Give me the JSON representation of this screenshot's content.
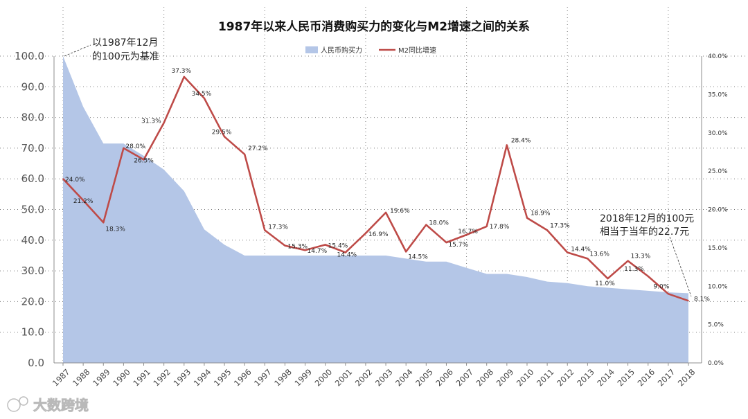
{
  "chart_data": {
    "type": "area+line",
    "title": "1987年以来人民币消费购买力的变化与M2增速之间的关系",
    "categories": [
      "1987",
      "1988",
      "1989",
      "1990",
      "1991",
      "1992",
      "1993",
      "1994",
      "1995",
      "1996",
      "1997",
      "1998",
      "1999",
      "2000",
      "2001",
      "2002",
      "2003",
      "2004",
      "2005",
      "2006",
      "2007",
      "2008",
      "2009",
      "2010",
      "2011",
      "2012",
      "2013",
      "2014",
      "2015",
      "2016",
      "2017",
      "2018"
    ],
    "y_left": {
      "ylim": [
        0,
        100
      ],
      "ticks": [
        "0.0",
        "10.0",
        "20.0",
        "30.0",
        "40.0",
        "50.0",
        "60.0",
        "70.0",
        "80.0",
        "90.0",
        "100.0"
      ]
    },
    "y_right": {
      "ylim": [
        0,
        40
      ],
      "ticks": [
        "0.0%",
        "5.0%",
        "10.0%",
        "15.0%",
        "20.0%",
        "25.0%",
        "30.0%",
        "35.0%",
        "40.0%"
      ]
    },
    "series": [
      {
        "name": "人民币购买力",
        "type": "area",
        "axis": "left",
        "color": "#b4c6e7",
        "values": [
          100,
          83.5,
          71.5,
          71.5,
          67.5,
          63,
          56,
          43.5,
          38.5,
          35,
          35,
          35,
          35,
          35,
          35,
          35,
          35,
          34,
          33,
          33,
          31,
          29,
          29,
          28,
          26.5,
          26,
          25,
          24.5,
          24,
          23.5,
          23,
          22.7
        ]
      },
      {
        "name": "M2同比增速",
        "type": "line",
        "axis": "right",
        "color": "#be4b48",
        "values": [
          24.0,
          21.2,
          18.3,
          28.0,
          26.5,
          31.3,
          37.3,
          34.5,
          29.5,
          27.2,
          17.3,
          15.3,
          14.7,
          15.4,
          14.4,
          16.9,
          19.6,
          14.5,
          18.0,
          15.7,
          16.7,
          17.8,
          28.4,
          18.9,
          17.3,
          14.4,
          13.6,
          11.0,
          13.3,
          11.3,
          9.0,
          8.1
        ],
        "labels": [
          "24.0%",
          "21.2%",
          "18.3%",
          "28.0%",
          "26.5%",
          "31.3%",
          "37.3%",
          "34.5%",
          "29.5%",
          "27.2%",
          "17.3%",
          "15.3%",
          "14.7%",
          "15.4%",
          "14.4%",
          "16.9%",
          "19.6%",
          "14.5%",
          "18.0%",
          "15.7%",
          "16.7%",
          "17.8%",
          "28.4%",
          "18.9%",
          "17.3%",
          "14.4%",
          "13.6%",
          "11.0%",
          "13.3%",
          "11.3%",
          "9.0%",
          "8.1%"
        ]
      }
    ],
    "legend_position": "top-center",
    "grid": "dotted",
    "annotations": [
      {
        "text_line1": "以1987年12月",
        "text_line2": "的100元为基准",
        "target": "1987"
      },
      {
        "text_line1": "2018年12月的100元",
        "text_line2": "相当于当年的22.7元",
        "target": "2018"
      }
    ]
  },
  "watermark": "大数跨境"
}
